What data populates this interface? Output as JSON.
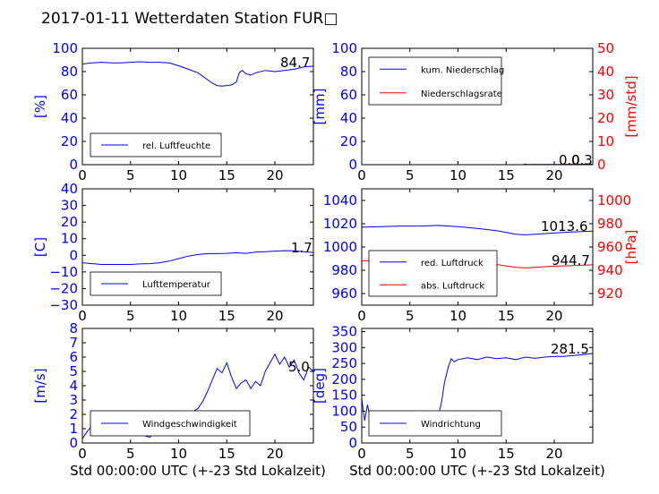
{
  "title": "2017-01-11 Wetterdaten Station FUR□",
  "colors": {
    "primary": "#0000ff",
    "secondary": "#ff0000",
    "tertiary": "#7777ff"
  },
  "chart_data": [
    {
      "type": "line",
      "id": "humidity",
      "ylabel": "[%]",
      "xlabel": "",
      "xlim": [
        0,
        24
      ],
      "ylim": [
        0,
        100
      ],
      "xticks": [
        "0",
        "5",
        "10",
        "15",
        "20"
      ],
      "yticks": [
        "0",
        "20",
        "40",
        "60",
        "80",
        "100"
      ],
      "legend": {
        "placement": "lower-left",
        "entries": [
          "rel. Luftfeuchte"
        ]
      },
      "annotations": [
        "84.7"
      ],
      "series": [
        {
          "name": "rel. Luftfeuchte",
          "color": "#0000ff",
          "x": [
            0,
            1,
            2,
            3,
            4,
            5,
            6,
            7,
            8,
            9,
            10,
            11,
            12,
            12.5,
            13,
            13.5,
            14,
            14.5,
            15,
            15.5,
            16,
            16.3,
            16.6,
            17,
            17.5,
            18,
            19,
            20,
            21,
            22,
            23,
            24
          ],
          "y": [
            86.5,
            87.5,
            88,
            87.5,
            87.5,
            88,
            88.5,
            88,
            88,
            87.5,
            85,
            82,
            79,
            76,
            73,
            70,
            68,
            67.5,
            68,
            68.5,
            71,
            79,
            81,
            78,
            77,
            79,
            81,
            80,
            81,
            82,
            84,
            84.7
          ]
        }
      ]
    },
    {
      "type": "line",
      "id": "precipitation",
      "ylabel": "[mm]",
      "ylabel2": "[mm/std]",
      "xlabel": "",
      "xlim": [
        0,
        24
      ],
      "ylim": [
        0,
        100
      ],
      "ylim2": [
        0,
        50
      ],
      "xticks": [
        "0",
        "5",
        "10",
        "15",
        "20"
      ],
      "yticks": [
        "0",
        "20",
        "40",
        "60",
        "80",
        "100"
      ],
      "yticks2": [
        "0",
        "10",
        "20",
        "30",
        "40",
        "50"
      ],
      "legend": {
        "placement": "upper-left",
        "entries": [
          "kum. Niederschlag",
          "Niederschlagsrate"
        ]
      },
      "annotations": [
        "0.0",
        "0.3"
      ],
      "series": [
        {
          "name": "kum. Niederschlag",
          "color": "#0000ff",
          "axis": "left",
          "x": [
            0,
            6,
            12,
            16.5,
            17,
            18,
            21,
            24
          ],
          "y": [
            0,
            0,
            0,
            0,
            0.1,
            0.15,
            0.25,
            0.3
          ]
        },
        {
          "name": "Niederschlagsrate",
          "color": "#ff0000",
          "axis": "right",
          "x": [
            0,
            6,
            12,
            16.8,
            17,
            17.2,
            20.5,
            20.7,
            24
          ],
          "y": [
            0,
            0,
            0,
            0,
            0.3,
            0,
            0,
            0.15,
            0
          ]
        }
      ]
    },
    {
      "type": "line",
      "id": "temperature",
      "ylabel": "[C]",
      "xlabel": "",
      "xlim": [
        0,
        24
      ],
      "ylim": [
        -30,
        40
      ],
      "xticks": [
        "0",
        "5",
        "10",
        "15",
        "20"
      ],
      "yticks": [
        "−30",
        "−20",
        "−10",
        "0",
        "10",
        "20",
        "30",
        "40"
      ],
      "legend": {
        "placement": "lower-left",
        "entries": [
          "Lufttemperatur"
        ]
      },
      "annotations": [
        "1.7"
      ],
      "series": [
        {
          "name": "Lufttemperatur",
          "color": "#0000ff",
          "x": [
            0,
            1,
            2,
            3,
            4,
            5,
            6,
            7,
            8,
            9,
            10,
            11,
            12,
            13,
            14,
            15,
            16,
            17,
            18,
            19,
            20,
            21,
            22,
            23,
            24
          ],
          "y": [
            -4.5,
            -5,
            -5.5,
            -5.5,
            -5.5,
            -5.5,
            -5.2,
            -5,
            -4.5,
            -3.5,
            -2,
            -0.5,
            0.5,
            1,
            1,
            1.2,
            1.5,
            1.2,
            2,
            2.2,
            2.5,
            2.8,
            2.7,
            2.2,
            1.7
          ]
        }
      ]
    },
    {
      "type": "line",
      "id": "pressure",
      "ylabel": "",
      "ylabel2": "[hPa]",
      "xlabel": "",
      "xlim": [
        0,
        24
      ],
      "ylim": [
        950,
        1050
      ],
      "ylim2": [
        910,
        1010
      ],
      "xticks": [
        "0",
        "5",
        "10",
        "15",
        "20"
      ],
      "yticks": [
        "960",
        "980",
        "1000",
        "1020",
        "1040"
      ],
      "yticks2": [
        "920",
        "940",
        "960",
        "980",
        "1000"
      ],
      "legend": {
        "placement": "lower-left",
        "entries": [
          "red. Luftdruck",
          "abs. Luftdruck"
        ]
      },
      "annotations": [
        "1013.6",
        "944.7"
      ],
      "series": [
        {
          "name": "red. Luftdruck",
          "color": "#0000ff",
          "axis": "left",
          "x": [
            0,
            2,
            4,
            6,
            8,
            10,
            12,
            14,
            16,
            17,
            18,
            20,
            22,
            24
          ],
          "y": [
            1017,
            1017.5,
            1018,
            1018,
            1018.5,
            1017.5,
            1016,
            1014,
            1011,
            1010.5,
            1011,
            1012,
            1013,
            1013.6
          ]
        },
        {
          "name": "abs. Luftdruck",
          "color": "#ff0000",
          "axis": "right",
          "x": [
            0,
            2,
            4,
            6,
            8,
            10,
            12,
            14,
            16,
            17,
            18,
            20,
            22,
            24
          ],
          "y": [
            948,
            948.5,
            949,
            949,
            949.3,
            948.5,
            947,
            945,
            942.5,
            942,
            942.5,
            943.5,
            944,
            944.7
          ]
        }
      ]
    },
    {
      "type": "line",
      "id": "windspeed",
      "ylabel": "[m/s]",
      "xlabel": "Std 00:00:00 UTC (+-23 Std Lokalzeit)",
      "xlim": [
        0,
        24
      ],
      "ylim": [
        0,
        8
      ],
      "xticks": [
        "0",
        "5",
        "10",
        "15",
        "20"
      ],
      "yticks": [
        "0",
        "1",
        "2",
        "3",
        "4",
        "5",
        "6",
        "7",
        "8"
      ],
      "legend": {
        "placement": "lower-left",
        "entries": [
          "Windgeschwindigkeit"
        ]
      },
      "annotations": [
        "5.0"
      ],
      "series": [
        {
          "name": "Windgeschwindigkeit",
          "color": "#0000ff",
          "x": [
            0,
            0.5,
            1,
            1.5,
            2,
            2.5,
            3,
            3.5,
            4,
            4.5,
            5,
            5.5,
            6,
            6.5,
            7,
            7.5,
            8,
            8.5,
            9,
            9.5,
            10,
            10.5,
            11,
            11.5,
            12,
            12.5,
            13,
            13.5,
            14,
            14.5,
            15,
            15.5,
            16,
            16.5,
            17,
            17.5,
            18,
            18.5,
            19,
            19.5,
            20,
            20.5,
            21,
            21.5,
            22,
            22.5,
            23,
            23.5,
            24
          ],
          "y": [
            0.3,
            0.8,
            1.2,
            1.5,
            1.3,
            1.6,
            1.1,
            1.4,
            1.0,
            1.2,
            0.9,
            1.1,
            0.8,
            0.5,
            0.4,
            0.7,
            1.0,
            1.2,
            1.1,
            1.5,
            1.9,
            1.6,
            1.5,
            2.2,
            2.4,
            2.9,
            3.6,
            4.4,
            5.2,
            4.9,
            5.6,
            4.6,
            3.8,
            4.2,
            4.4,
            3.8,
            4.3,
            4.0,
            5.0,
            5.6,
            6.2,
            5.5,
            6.0,
            5.3,
            5.8,
            4.9,
            4.4,
            5.3,
            5.0
          ]
        }
      ]
    },
    {
      "type": "line",
      "id": "winddirection",
      "ylabel": "[deg]",
      "xlabel": "Std 00:00:00 UTC (+-23 Std Lokalzeit)",
      "xlim": [
        0,
        24
      ],
      "ylim": [
        0,
        360
      ],
      "xticks": [
        "0",
        "5",
        "10",
        "15",
        "20"
      ],
      "yticks": [
        "0",
        "50",
        "100",
        "150",
        "200",
        "250",
        "300",
        "350"
      ],
      "legend": {
        "placement": "lower-left",
        "entries": [
          "Windrichtung"
        ]
      },
      "annotations": [
        "281.5"
      ],
      "series": [
        {
          "name": "Windrichtung",
          "color": "#0000ff",
          "x": [
            0,
            0.3,
            0.6,
            1,
            1.5,
            2,
            2.5,
            3,
            3.5,
            4,
            4.5,
            5,
            5.5,
            6,
            6.5,
            7,
            7.5,
            8,
            8.3,
            8.6,
            9,
            9.3,
            9.6,
            10,
            11,
            12,
            13,
            14,
            15,
            16,
            17,
            18,
            19,
            20,
            21,
            22,
            23,
            24
          ],
          "y": [
            140,
            70,
            120,
            60,
            50,
            90,
            70,
            80,
            65,
            95,
            70,
            85,
            75,
            100,
            85,
            95,
            80,
            90,
            130,
            190,
            240,
            265,
            255,
            262,
            268,
            262,
            270,
            265,
            268,
            262,
            270,
            266,
            270,
            272,
            272,
            275,
            278,
            281.5
          ]
        }
      ]
    }
  ]
}
